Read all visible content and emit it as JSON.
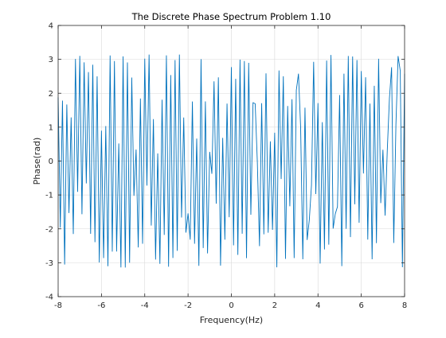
{
  "chart_data": {
    "type": "line",
    "title": "The Discrete Phase Spectrum Problem 1.10",
    "xlabel": "Frequency(Hz)",
    "ylabel": "Phase(rad)",
    "xlim": [
      -8,
      8
    ],
    "ylim": [
      -4,
      4
    ],
    "xticks": [
      -8,
      -6,
      -4,
      -2,
      0,
      2,
      4,
      6,
      8
    ],
    "yticks": [
      -4,
      -3,
      -2,
      -1,
      0,
      1,
      2,
      3,
      4
    ],
    "grid": true,
    "legend": "none",
    "series": [
      {
        "color": "#0072BD",
        "sample_count": 161,
        "phase_range": [
          -3.14,
          3.14
        ],
        "x_start": -8,
        "x_end": 8
      }
    ]
  }
}
